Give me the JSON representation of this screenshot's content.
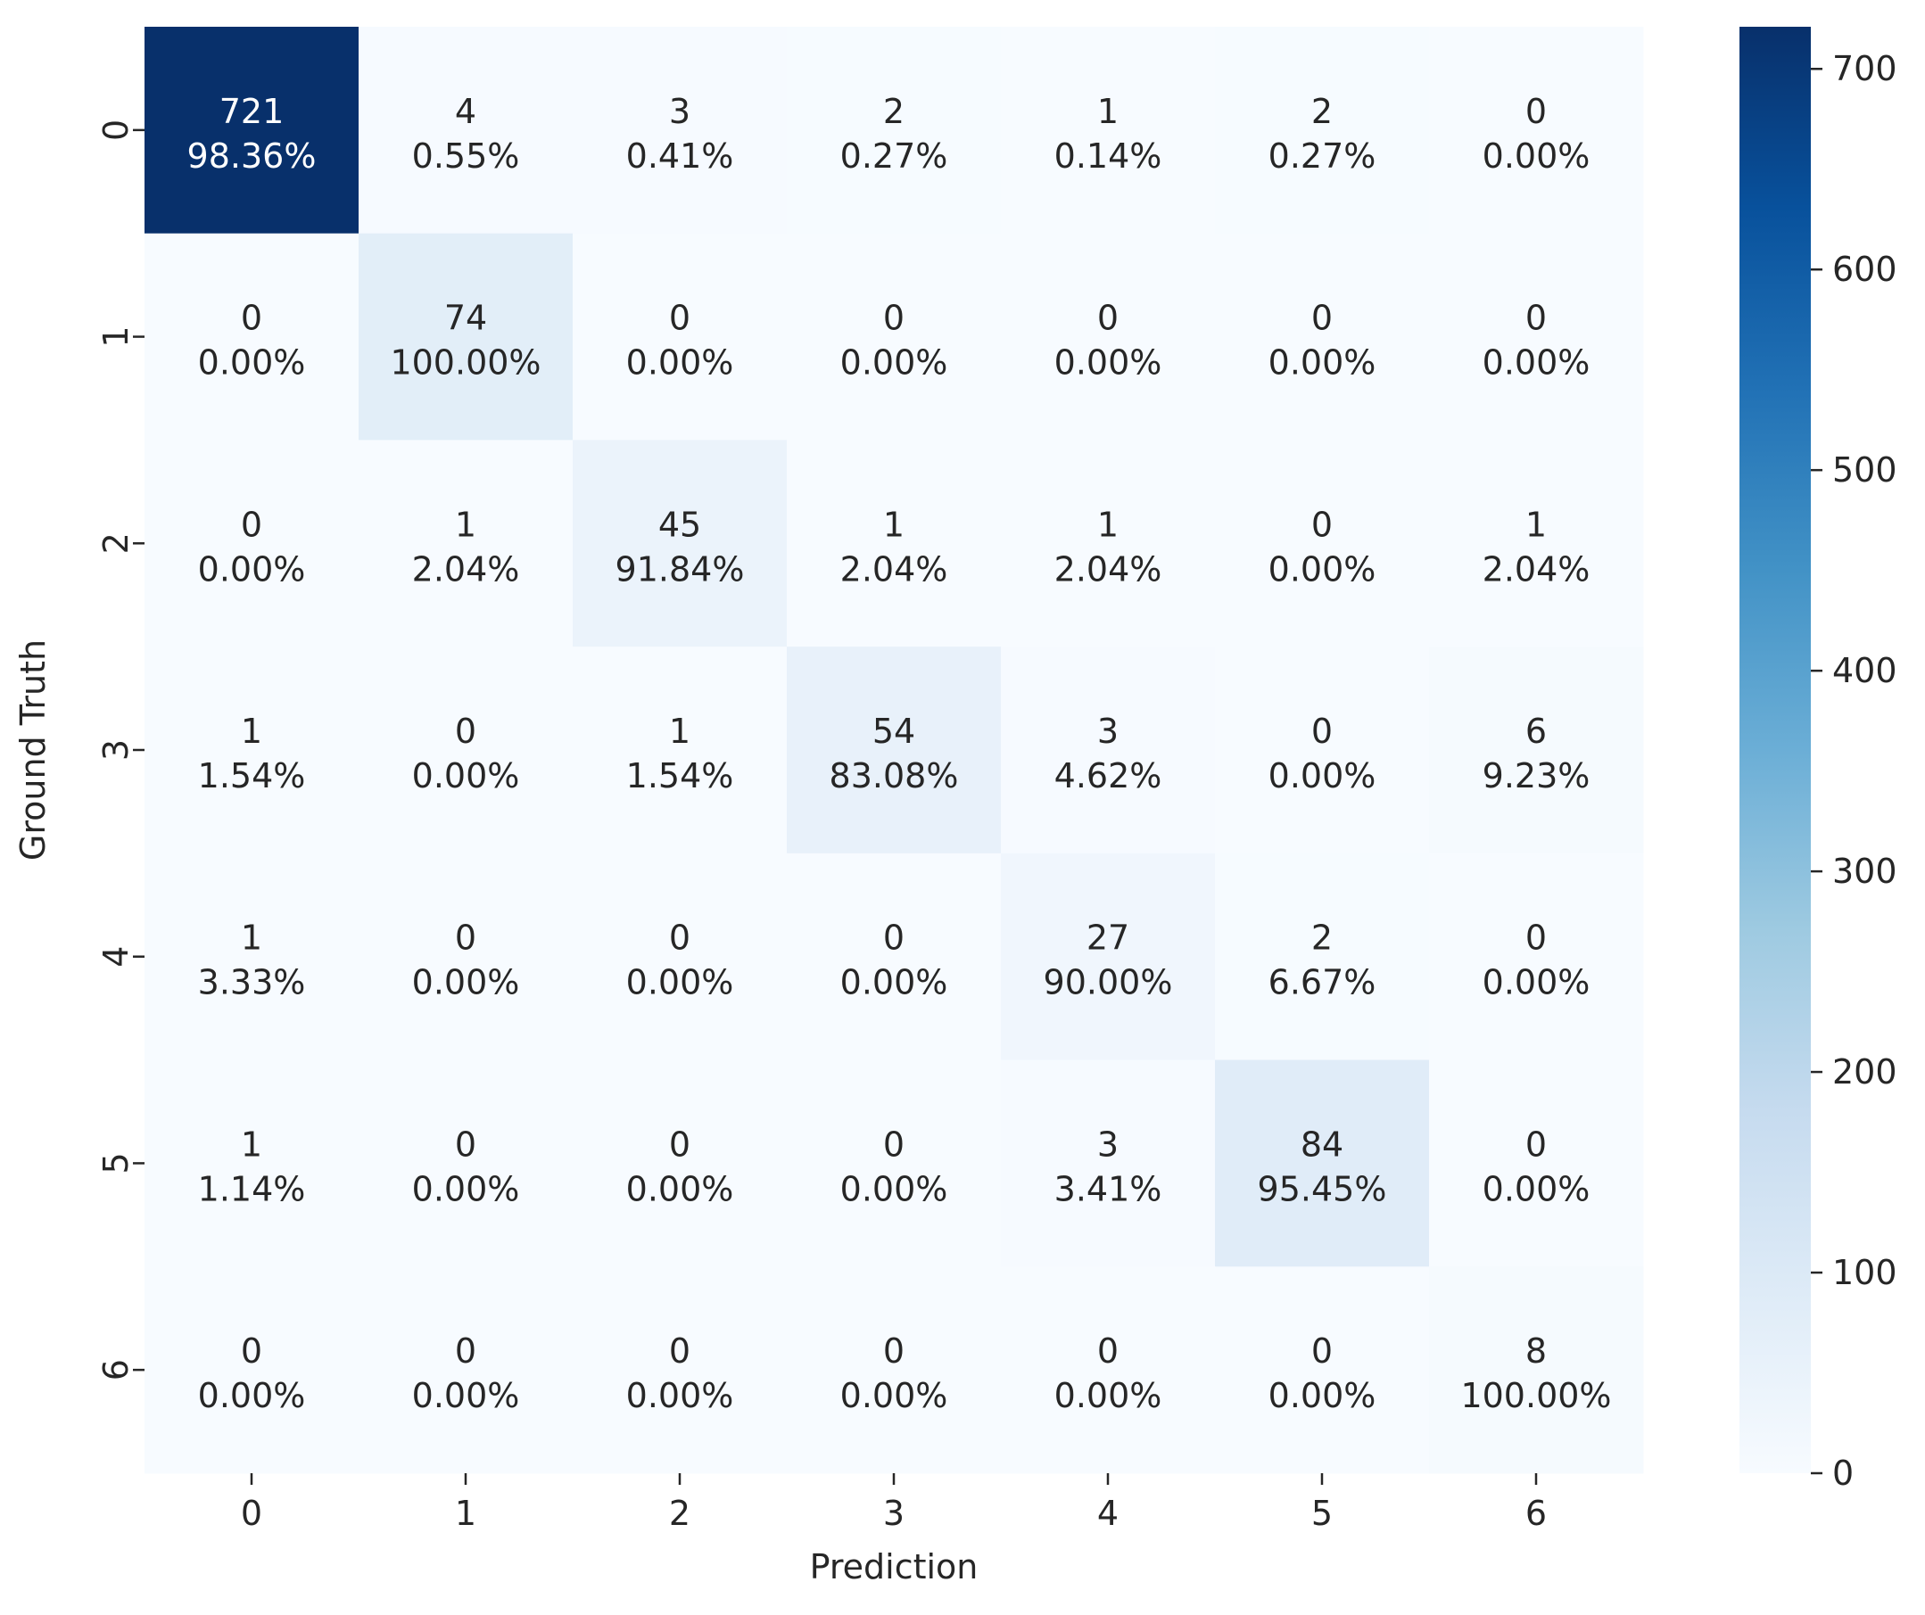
{
  "chart_data": {
    "type": "heatmap",
    "title": "",
    "xlabel": "Prediction",
    "ylabel": "Ground Truth",
    "x_categories": [
      "0",
      "1",
      "2",
      "3",
      "4",
      "5",
      "6"
    ],
    "y_categories": [
      "0",
      "1",
      "2",
      "3",
      "4",
      "5",
      "6"
    ],
    "counts": [
      [
        721,
        4,
        3,
        2,
        1,
        2,
        0
      ],
      [
        0,
        74,
        0,
        0,
        0,
        0,
        0
      ],
      [
        0,
        1,
        45,
        1,
        1,
        0,
        1
      ],
      [
        1,
        0,
        1,
        54,
        3,
        0,
        6
      ],
      [
        1,
        0,
        0,
        0,
        27,
        2,
        0
      ],
      [
        1,
        0,
        0,
        0,
        3,
        84,
        0
      ],
      [
        0,
        0,
        0,
        0,
        0,
        0,
        8
      ]
    ],
    "percentages": [
      [
        "98.36%",
        "0.55%",
        "0.41%",
        "0.27%",
        "0.14%",
        "0.27%",
        "0.00%"
      ],
      [
        "0.00%",
        "100.00%",
        "0.00%",
        "0.00%",
        "0.00%",
        "0.00%",
        "0.00%"
      ],
      [
        "0.00%",
        "2.04%",
        "91.84%",
        "2.04%",
        "2.04%",
        "0.00%",
        "2.04%"
      ],
      [
        "1.54%",
        "0.00%",
        "1.54%",
        "83.08%",
        "4.62%",
        "0.00%",
        "9.23%"
      ],
      [
        "3.33%",
        "0.00%",
        "0.00%",
        "0.00%",
        "90.00%",
        "6.67%",
        "0.00%"
      ],
      [
        "1.14%",
        "0.00%",
        "0.00%",
        "0.00%",
        "3.41%",
        "95.45%",
        "0.00%"
      ],
      [
        "0.00%",
        "0.00%",
        "0.00%",
        "0.00%",
        "0.00%",
        "0.00%",
        "100.00%"
      ]
    ],
    "colormap": "Blues",
    "colormap_stops": [
      "#f7fbff",
      "#deebf7",
      "#c6dbef",
      "#9ecae1",
      "#6baed6",
      "#4292c6",
      "#2171b5",
      "#08519c",
      "#08306b"
    ],
    "colorbar": {
      "range": [
        0,
        721
      ],
      "ticks": [
        0,
        100,
        200,
        300,
        400,
        500,
        600,
        700
      ]
    },
    "legend": "colorbar-right",
    "grid": false
  }
}
